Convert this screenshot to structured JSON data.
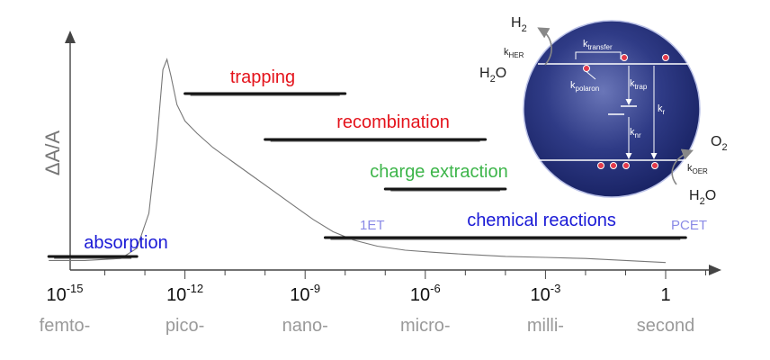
{
  "yaxis": {
    "label": "ΔA/A"
  },
  "xaxis": {
    "ticks": [
      {
        "base": "10",
        "exp": "-15",
        "prefix": "femto-"
      },
      {
        "base": "10",
        "exp": "-12",
        "prefix": "pico-"
      },
      {
        "base": "10",
        "exp": "-9",
        "prefix": "nano-"
      },
      {
        "base": "10",
        "exp": "-6",
        "prefix": "micro-"
      },
      {
        "base": "10",
        "exp": "-3",
        "prefix": "milli-"
      },
      {
        "base": "1",
        "exp": "",
        "prefix": "second"
      }
    ]
  },
  "processes": [
    {
      "label": "absorption",
      "color": "#1a1ad6",
      "from_log10_s": -15.4,
      "to_log10_s": -13.2
    },
    {
      "label": "trapping",
      "color": "#e4131b",
      "from_log10_s": -12.0,
      "to_log10_s": -8.0
    },
    {
      "label": "recombination",
      "color": "#e4131b",
      "from_log10_s": -10.0,
      "to_log10_s": -4.5
    },
    {
      "label": "charge extraction",
      "color": "#3db54a",
      "from_log10_s": -7.0,
      "to_log10_s": -4.0
    },
    {
      "label": "chemical reactions",
      "color": "#1a1ad6",
      "from_log10_s": -8.5,
      "to_log10_s": 0.5
    }
  ],
  "reaction_markers": {
    "left": "1ET",
    "right": "PCET",
    "color": "#8a8ae6"
  },
  "band_diagram": {
    "h2": {
      "main": "H",
      "sub": "2"
    },
    "h2o_top": {
      "main": "H",
      "sub": "2",
      "tail": "O"
    },
    "o2": {
      "main": "O",
      "sub": "2"
    },
    "h2o_bottom": {
      "main": "H",
      "sub": "2",
      "tail": "O"
    },
    "k_her": {
      "main": "k",
      "sub": "HER"
    },
    "k_transfer": {
      "main": "k",
      "sub": "transfer"
    },
    "k_polaron": {
      "main": "k",
      "sub": "polaron"
    },
    "k_trap": {
      "main": "k",
      "sub": "trap"
    },
    "k_r": {
      "main": "k",
      "sub": "r"
    },
    "k_nr": {
      "main": "k",
      "sub": "nr"
    },
    "k_oer": {
      "main": "k",
      "sub": "OER"
    },
    "sphere_color": "#1c2a6e"
  },
  "kinetic_trace": {
    "description_series": "transient absorption decay",
    "points": [
      [
        -15.4,
        0.02
      ],
      [
        -14.5,
        0.02
      ],
      [
        -13.6,
        0.03
      ],
      [
        -13.2,
        0.08
      ],
      [
        -12.9,
        0.25
      ],
      [
        -12.7,
        0.6
      ],
      [
        -12.55,
        0.95
      ],
      [
        -12.45,
        1.0
      ],
      [
        -12.35,
        0.92
      ],
      [
        -12.2,
        0.78
      ],
      [
        -12.0,
        0.7
      ],
      [
        -11.7,
        0.64
      ],
      [
        -11.3,
        0.57
      ],
      [
        -10.8,
        0.5
      ],
      [
        -10.3,
        0.43
      ],
      [
        -9.8,
        0.36
      ],
      [
        -9.3,
        0.29
      ],
      [
        -8.8,
        0.22
      ],
      [
        -8.3,
        0.16
      ],
      [
        -7.8,
        0.12
      ],
      [
        -7.2,
        0.09
      ],
      [
        -6.5,
        0.07
      ],
      [
        -5.8,
        0.06
      ],
      [
        -5.0,
        0.05
      ],
      [
        -4.0,
        0.04
      ],
      [
        -3.0,
        0.035
      ],
      [
        -2.0,
        0.03
      ],
      [
        -1.0,
        0.02
      ],
      [
        0.0,
        0.01
      ]
    ]
  }
}
